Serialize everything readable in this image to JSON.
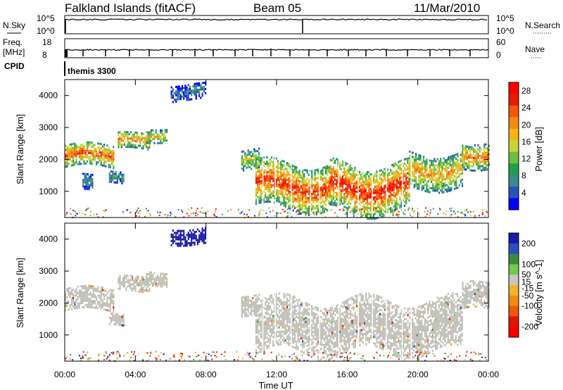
{
  "header": {
    "station": "Falkland Islands (fitACF)",
    "beam": "Beam 05",
    "date": "11/Mar/2010"
  },
  "side_labels": {
    "nsky": "N.Sky",
    "nsearch": "N.Search",
    "freq": "Freq.",
    "mhz": "[MHz]",
    "nave": "Nave",
    "cpid": "CPID",
    "cpid_value": "themis 3300"
  },
  "small_panels": {
    "noise_ticks_left": [
      "10^5",
      "10^0"
    ],
    "noise_ticks_right": [
      "10^5",
      "10^0"
    ],
    "freq_ticks_left": [
      "18",
      "8"
    ],
    "nave_ticks_right": [
      "60",
      "0"
    ]
  },
  "colors": {
    "scale_power": [
      "#0000ff",
      "#2a53b8",
      "#3c8a8a",
      "#1e9e50",
      "#6bbf3a",
      "#c6d63a",
      "#f2b418",
      "#f28a10",
      "#f25a08",
      "#e81c00",
      "#ff0000"
    ],
    "scale_velocity": [
      "#1a1aa8",
      "#2d4ec0",
      "#3b8c3b",
      "#76c84a",
      "#c7c7c0",
      "#f0b22a",
      "#f08a12",
      "#ec5a0a",
      "#e01800",
      "#ff0000"
    ],
    "ground_scatter": "#c0c0b8"
  },
  "chart_data": [
    {
      "type": "heatmap",
      "title": "Power",
      "xlabel": "Time UT",
      "ylabel": "Slant Range [km]",
      "x_ticks": [
        "00:00",
        "04:00",
        "08:00",
        "12:00",
        "16:00",
        "20:00",
        "00:00"
      ],
      "y_ticks": [
        1000,
        2000,
        3000,
        4000
      ],
      "xlim_hours": [
        0,
        24
      ],
      "ylim_km": [
        180,
        4500
      ],
      "colorbar": {
        "label": "Power [dB]",
        "ticks": [
          4,
          8,
          12,
          16,
          20,
          24,
          28
        ],
        "range": [
          0,
          30
        ]
      },
      "regions": [
        {
          "t0": 0.0,
          "t1": 2.8,
          "r_center": 2150,
          "r_width": 700,
          "level": 24
        },
        {
          "t0": 3.0,
          "t1": 4.8,
          "r_center": 2600,
          "r_width": 500,
          "level": 22
        },
        {
          "t0": 1.0,
          "t1": 1.6,
          "r_center": 1300,
          "r_width": 500,
          "level": 8
        },
        {
          "t0": 2.5,
          "t1": 3.3,
          "r_center": 1500,
          "r_width": 350,
          "level": 10
        },
        {
          "t0": 4.6,
          "t1": 5.8,
          "r_center": 2800,
          "r_width": 400,
          "level": 18
        },
        {
          "t0": 6.0,
          "t1": 8.0,
          "r_center": 4150,
          "r_width": 500,
          "level": 6
        },
        {
          "t0": 10.0,
          "t1": 11.0,
          "r_center": 2000,
          "r_width": 600,
          "level": 16
        },
        {
          "t0": 10.8,
          "t1": 15.0,
          "r_center": 1200,
          "r_width": 1400,
          "level": 26
        },
        {
          "t0": 15.0,
          "t1": 19.5,
          "r_center": 1150,
          "r_width": 1500,
          "level": 27
        },
        {
          "t0": 19.5,
          "t1": 22.5,
          "r_center": 1700,
          "r_width": 1100,
          "level": 20
        },
        {
          "t0": 22.5,
          "t1": 24.0,
          "r_center": 2200,
          "r_width": 800,
          "level": 22
        }
      ]
    },
    {
      "type": "heatmap",
      "title": "Velocity",
      "xlabel": "Time UT",
      "ylabel": "Slant Range [km]",
      "x_ticks": [
        "00:00",
        "04:00",
        "08:00",
        "12:00",
        "16:00",
        "20:00",
        "00:00"
      ],
      "y_ticks": [
        1000,
        2000,
        3000,
        4000
      ],
      "xlim_hours": [
        0,
        24
      ],
      "ylim_km": [
        180,
        4500
      ],
      "colorbar": {
        "label": "Velocity [m s^-1]",
        "ticks": [
          200,
          100,
          50,
          15,
          -15,
          -50,
          -100,
          -200
        ],
        "range": [
          -250,
          250
        ]
      },
      "regions": [
        {
          "t0": 0.0,
          "t1": 2.8,
          "r_center": 2150,
          "r_width": 700,
          "level": 0
        },
        {
          "t0": 3.0,
          "t1": 4.8,
          "r_center": 2600,
          "r_width": 500,
          "level": 0
        },
        {
          "t0": 2.5,
          "t1": 3.3,
          "r_center": 1500,
          "r_width": 350,
          "level": 0
        },
        {
          "t0": 4.6,
          "t1": 5.8,
          "r_center": 2800,
          "r_width": 400,
          "level": 0
        },
        {
          "t0": 6.0,
          "t1": 8.0,
          "r_center": 4150,
          "r_width": 500,
          "level": 220
        },
        {
          "t0": 10.0,
          "t1": 11.0,
          "r_center": 2000,
          "r_width": 600,
          "level": 0
        },
        {
          "t0": 10.8,
          "t1": 22.5,
          "r_center": 1300,
          "r_width": 1600,
          "level": 0
        },
        {
          "t0": 22.5,
          "t1": 24.0,
          "r_center": 2200,
          "r_width": 800,
          "level": 0
        }
      ]
    }
  ]
}
